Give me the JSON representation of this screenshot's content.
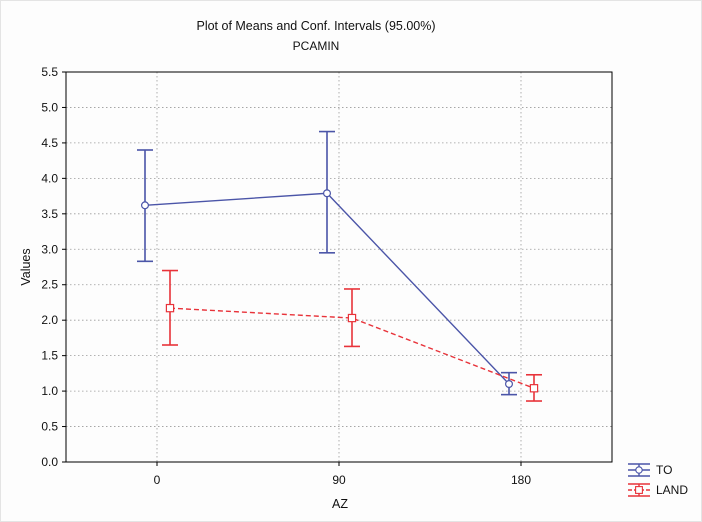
{
  "chart_data": {
    "type": "line",
    "title": "Plot of Means and Conf. Intervals (95.00%)",
    "subtitle": "PCAMIN",
    "xlabel": "AZ",
    "ylabel": "Values",
    "categories": [
      "0",
      "90",
      "180"
    ],
    "ylim": [
      0.0,
      5.5
    ],
    "yticks": [
      "0.0",
      "0.5",
      "1.0",
      "1.5",
      "2.0",
      "2.5",
      "3.0",
      "3.5",
      "4.0",
      "4.5",
      "5.0",
      "5.5"
    ],
    "grid": true,
    "legend_position": "bottom-right, outside plot",
    "series": [
      {
        "name": "TO",
        "color": "#4b55a8",
        "line_style": "solid",
        "marker": "circle",
        "values": [
          3.62,
          3.79,
          1.1
        ],
        "lower": [
          2.83,
          2.95,
          0.95
        ],
        "upper": [
          4.4,
          4.66,
          1.26
        ]
      },
      {
        "name": "LAND",
        "color": "#e8333a",
        "line_style": "dashed",
        "marker": "square",
        "values": [
          2.17,
          2.03,
          1.04
        ],
        "lower": [
          1.65,
          1.63,
          0.86
        ],
        "upper": [
          2.7,
          2.44,
          1.23
        ]
      }
    ]
  }
}
